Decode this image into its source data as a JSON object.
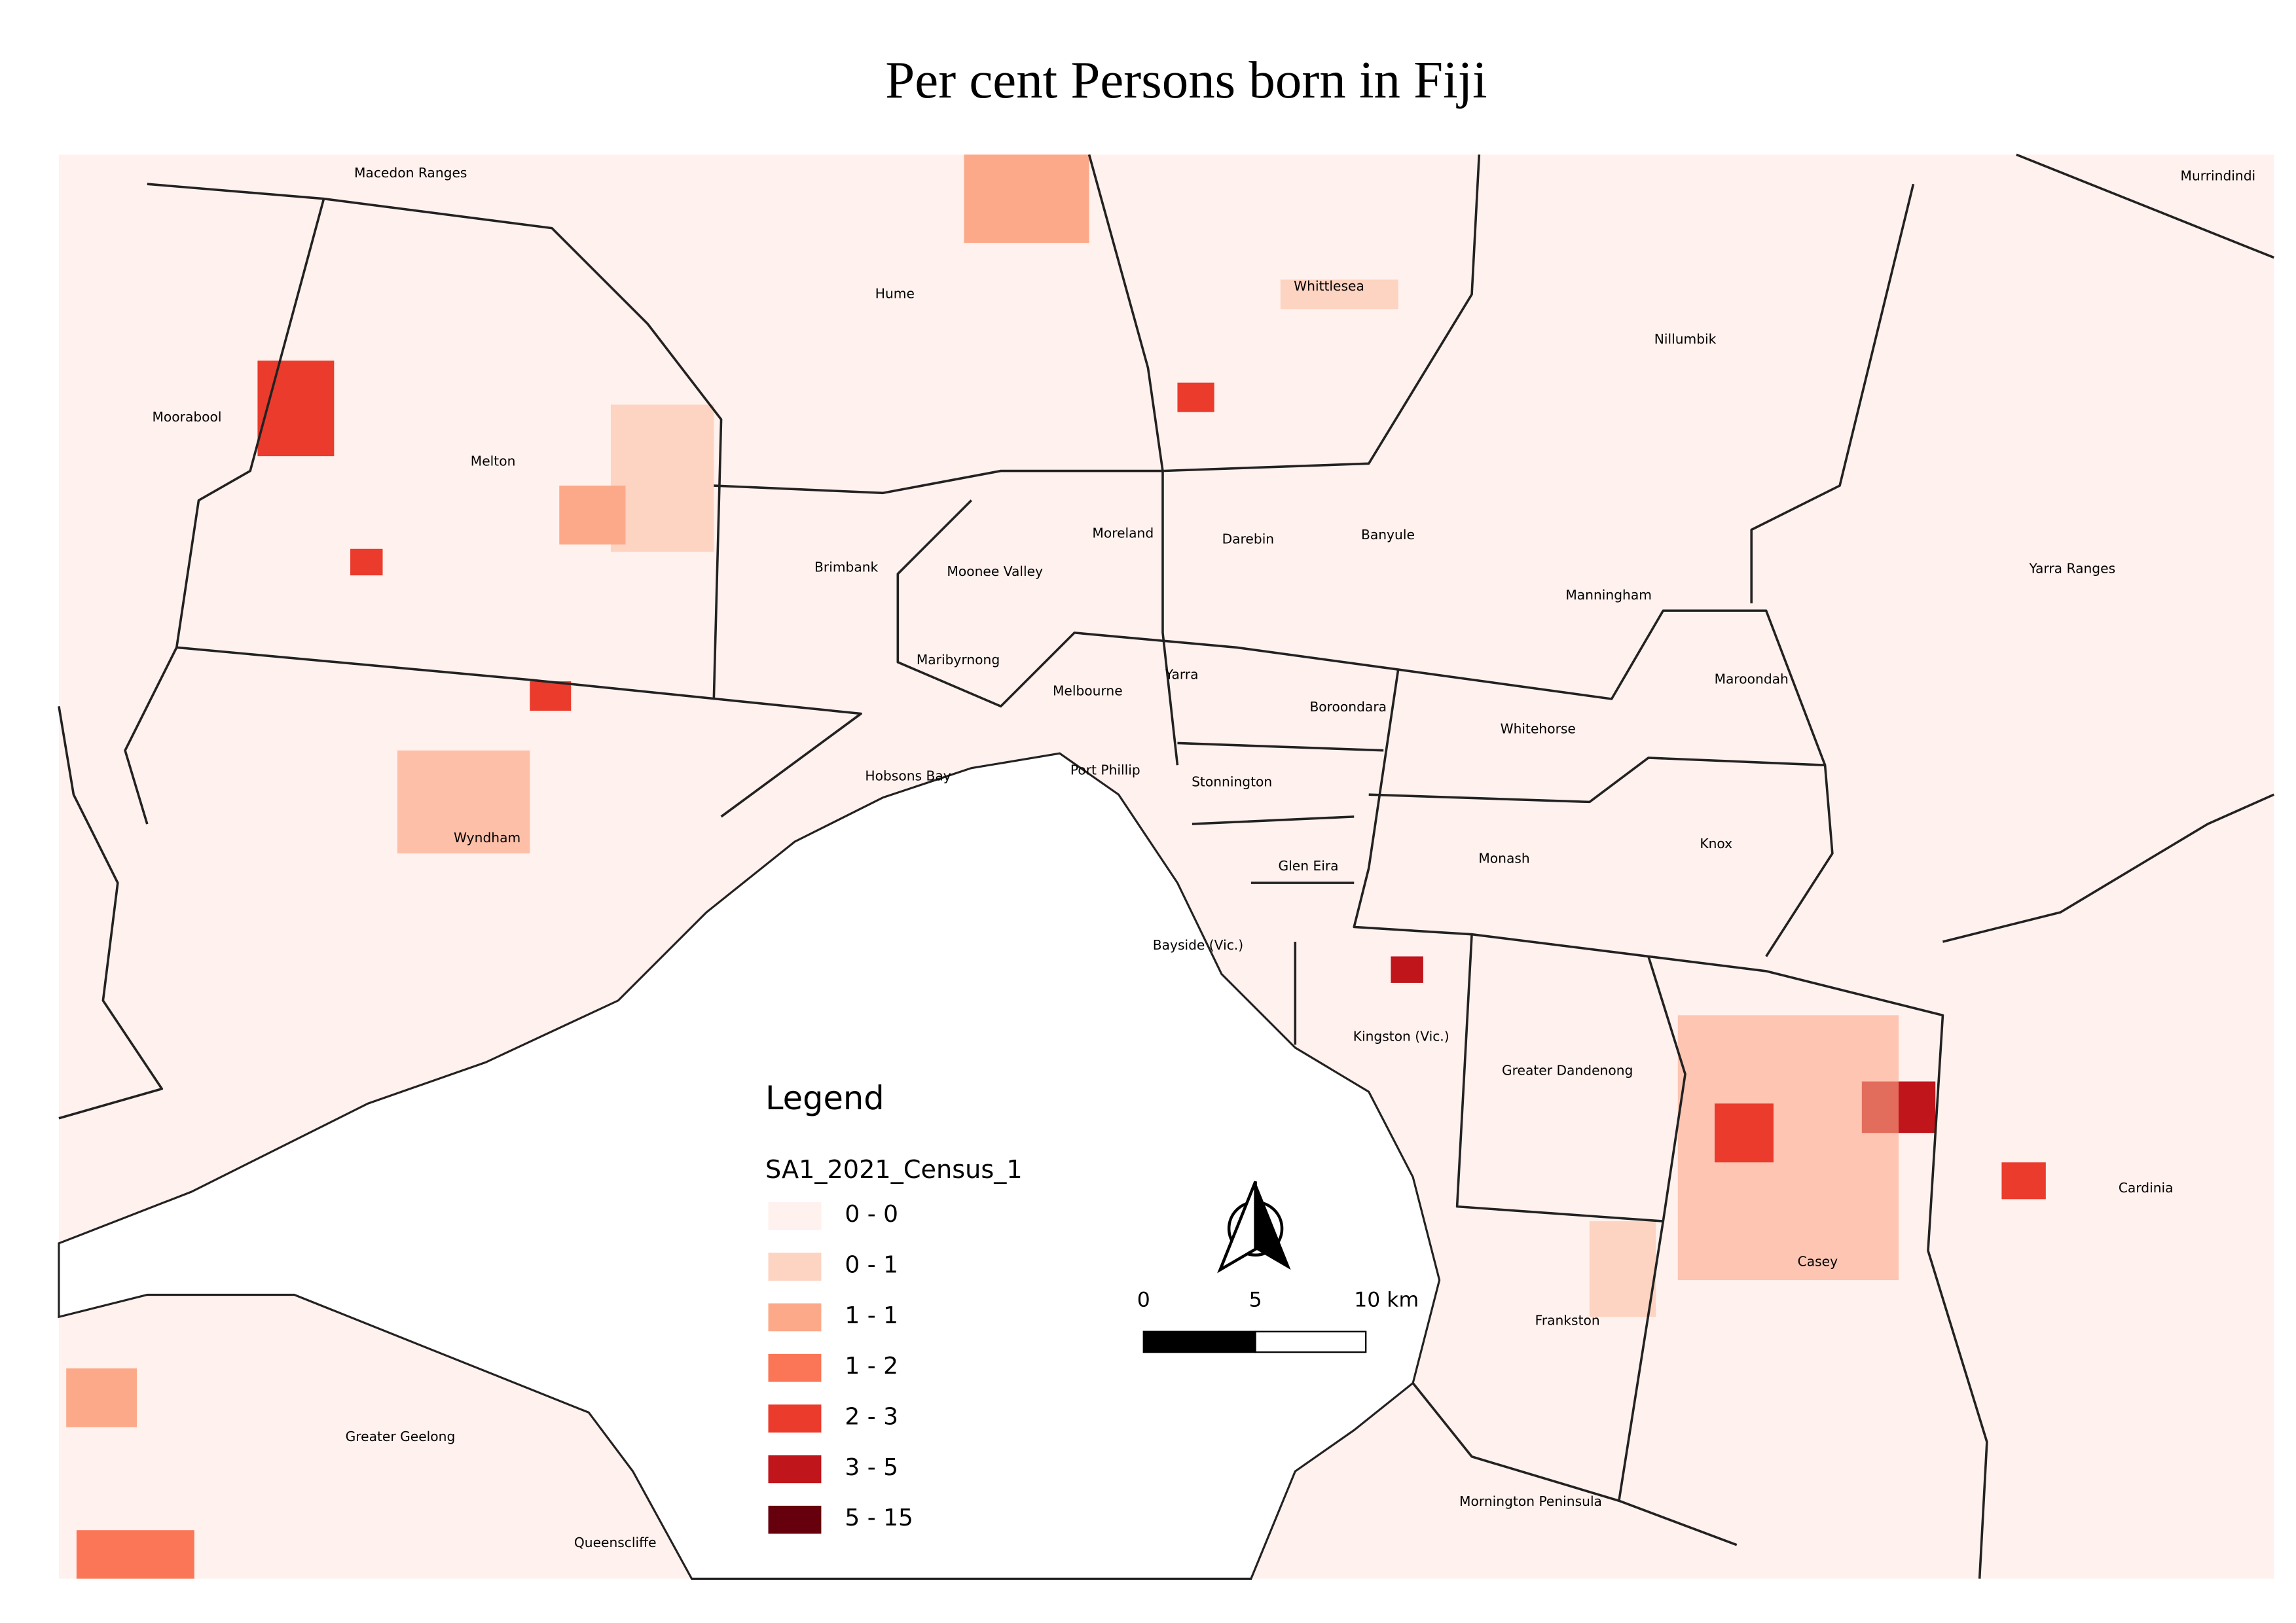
{
  "title": "Per cent Persons born in Fiji",
  "regions": [
    "Macedon Ranges",
    "Hume",
    "Whittlesea",
    "Nillumbik",
    "Murrindindi",
    "Moorabool",
    "Melton",
    "Brimbank",
    "Moonee Valley",
    "Moreland",
    "Darebin",
    "Banyule",
    "Manningham",
    "Yarra Ranges",
    "Maribyrnong",
    "Melbourne",
    "Yarra",
    "Boroondara",
    "Whitehorse",
    "Maroondah",
    "Wyndham",
    "Hobsons Bay",
    "Port Phillip",
    "Stonnington",
    "Glen Eira",
    "Monash",
    "Knox",
    "Bayside (Vic.)",
    "Kingston (Vic.)",
    "Greater Dandenong",
    "Casey",
    "Cardinia",
    "Frankston",
    "Greater Geelong",
    "Mornington Peninsula",
    "Queenscliffe"
  ],
  "legend": {
    "heading": "Legend",
    "title": "SA1_2021_Census_1",
    "items": [
      {
        "label": "0 - 0",
        "color": "#fff1ed"
      },
      {
        "label": "0 - 1",
        "color": "#fdd3c1"
      },
      {
        "label": "1 - 1",
        "color": "#fca98a"
      },
      {
        "label": "1 - 2",
        "color": "#fb7656"
      },
      {
        "label": "2 - 3",
        "color": "#ea3b2c"
      },
      {
        "label": "3 - 5",
        "color": "#bf151b"
      },
      {
        "label": "5 - 15",
        "color": "#67000d"
      }
    ]
  },
  "scale_bar": {
    "labels": [
      "0",
      "5",
      "10 km"
    ]
  }
}
